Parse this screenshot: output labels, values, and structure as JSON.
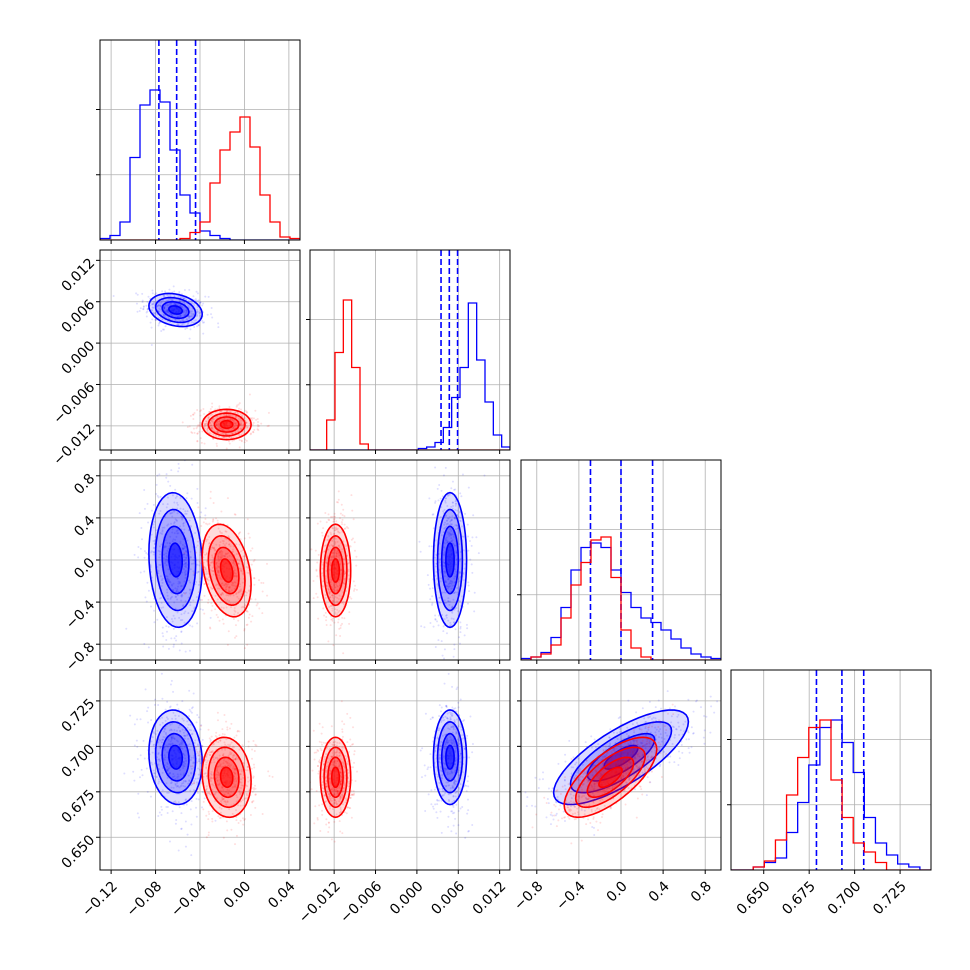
{
  "chart_data": {
    "type": "corner",
    "parameters": [
      "p0",
      "p1",
      "p2",
      "p3"
    ],
    "axes": {
      "p0": {
        "range": [
          -0.13,
          0.05
        ],
        "ticks": [
          -0.12,
          -0.08,
          -0.04,
          0.0,
          0.04
        ],
        "tick_labels": [
          "−0.12",
          "−0.08",
          "−0.04",
          "0.00",
          "0.04"
        ]
      },
      "p1": {
        "range": [
          -0.0155,
          0.0135
        ],
        "ticks": [
          -0.012,
          -0.006,
          0.0,
          0.006,
          0.012
        ],
        "tick_labels": [
          "−0.012",
          "−0.006",
          "0.000",
          "0.006",
          "0.012"
        ]
      },
      "p2": {
        "range": [
          -0.95,
          0.95
        ],
        "ticks": [
          -0.8,
          -0.4,
          0.0,
          0.4,
          0.8
        ],
        "tick_labels": [
          "−0.8",
          "−0.4",
          "0.0",
          "0.4",
          "0.8"
        ]
      },
      "p3": {
        "range": [
          0.632,
          0.742
        ],
        "ticks": [
          0.65,
          0.675,
          0.7,
          0.725
        ],
        "tick_labels": [
          "0.650",
          "0.675",
          "0.700",
          "0.725"
        ]
      }
    },
    "grid": true,
    "series": [
      {
        "color": "#0000ff",
        "quantiles_shown": true,
        "mean": [
          -0.062,
          0.0048,
          0.0,
          0.694
        ],
        "std": [
          0.012,
          0.0012,
          0.32,
          0.013
        ],
        "corr": {
          "p0_p1": -0.25,
          "p0_p2": -0.1,
          "p0_p3": -0.1,
          "p1_p2": 0.0,
          "p1_p3": 0.0,
          "p2_p3": 0.75
        },
        "quantile_lines": {
          "p0": [
            -0.077,
            -0.061,
            -0.044
          ],
          "p1": [
            0.0035,
            0.0047,
            0.0059
          ],
          "p2": [
            -0.29,
            0.0,
            0.3
          ],
          "p3": [
            0.679,
            0.693,
            0.705
          ]
        },
        "histograms": {
          "p0": [
            0.01,
            0.03,
            0.12,
            0.55,
            0.9,
            1.0,
            0.92,
            0.6,
            0.3,
            0.18,
            0.06,
            0.03,
            0.01,
            0.0,
            0.0,
            0.0,
            0.0,
            0.0,
            0.0,
            0.0
          ],
          "p1": [
            0.0,
            0.0,
            0.0,
            0.0,
            0.0,
            0.0,
            0.0,
            0.0,
            0.0,
            0.0,
            0.0,
            0.0,
            0.0,
            0.01,
            0.02,
            0.05,
            0.15,
            0.35,
            0.55,
            0.98,
            0.6,
            0.32,
            0.1,
            0.02
          ],
          "p2": [
            0.01,
            0.02,
            0.05,
            0.15,
            0.35,
            0.6,
            0.75,
            0.78,
            0.75,
            0.6,
            0.45,
            0.35,
            0.28,
            0.25,
            0.2,
            0.14,
            0.08,
            0.04,
            0.02,
            0.01
          ],
          "p3": [
            0.0,
            0.0,
            0.02,
            0.05,
            0.08,
            0.25,
            0.45,
            0.7,
            0.95,
            1.0,
            0.85,
            0.65,
            0.35,
            0.18,
            0.1,
            0.04,
            0.02,
            0.0
          ]
        }
      },
      {
        "color": "#ff0000",
        "quantiles_shown": false,
        "mean": [
          -0.016,
          -0.0118,
          -0.1,
          0.683
        ],
        "std": [
          0.011,
          0.0011,
          0.22,
          0.011
        ],
        "corr": {
          "p0_p1": 0.0,
          "p0_p2": -0.3,
          "p0_p3": -0.1,
          "p1_p2": 0.0,
          "p1_p3": 0.0,
          "p2_p3": 0.7
        },
        "histograms": {
          "p0": [
            0.0,
            0.0,
            0.0,
            0.0,
            0.0,
            0.0,
            0.0,
            0.0,
            0.01,
            0.05,
            0.12,
            0.38,
            0.6,
            0.72,
            0.82,
            0.62,
            0.3,
            0.12,
            0.02,
            0.01
          ],
          "p1": [
            0.0,
            0.0,
            0.2,
            0.65,
            1.0,
            0.55,
            0.04,
            0.0,
            0.0,
            0.0,
            0.0,
            0.0,
            0.0,
            0.0,
            0.0,
            0.0,
            0.0,
            0.0,
            0.0,
            0.0,
            0.0,
            0.0,
            0.0,
            0.0
          ],
          "p2": [
            0.0,
            0.02,
            0.04,
            0.1,
            0.28,
            0.5,
            0.65,
            0.8,
            0.82,
            0.55,
            0.2,
            0.08,
            0.02,
            0.0,
            0.0,
            0.0,
            0.0,
            0.0,
            0.0,
            0.0
          ],
          "p3": [
            0.0,
            0.0,
            0.02,
            0.06,
            0.2,
            0.5,
            0.75,
            0.95,
            1.0,
            0.6,
            0.35,
            0.18,
            0.12,
            0.05,
            0.0,
            0.0,
            0.0,
            0.0
          ]
        }
      }
    ]
  }
}
